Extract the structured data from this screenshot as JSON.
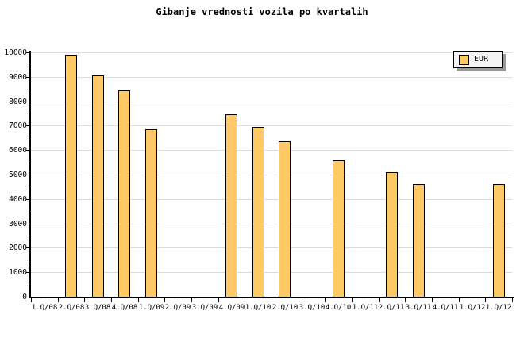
{
  "chart_data": {
    "type": "bar",
    "title": "Gibanje vrednosti vozila po kvartalih",
    "categories": [
      "1.Q/08",
      "2.Q/08",
      "3.Q/08",
      "4.Q/08",
      "1.Q/09",
      "2.Q/09",
      "3.Q/09",
      "4.Q/09",
      "1.Q/10",
      "2.Q/10",
      "3.Q/10",
      "4.Q/10",
      "1.Q/11",
      "2.Q/11",
      "3.Q/11",
      "4.Q/11",
      "1.Q/12",
      "1.Q/12"
    ],
    "series": [
      {
        "name": "EUR",
        "values": [
          null,
          9900,
          9050,
          8450,
          6850,
          null,
          null,
          7480,
          6950,
          6350,
          null,
          5600,
          null,
          5100,
          4600,
          null,
          null,
          4600
        ]
      }
    ],
    "xlabel": "",
    "ylabel": "",
    "ylim": [
      0,
      10000
    ],
    "y_ticks": [
      0,
      1000,
      2000,
      3000,
      4000,
      5000,
      6000,
      7000,
      8000,
      9000,
      10000
    ],
    "y_minor_tick_step": 500,
    "grid": "horizontal",
    "legend_position": "top-right",
    "colors": {
      "bar_fill": "#FFC966",
      "bar_border": "#000000",
      "grid_line": "#DCDCDC",
      "axis": "#000000",
      "legend_background": "#F4F4F4",
      "legend_shadow": "#999999",
      "text": "#000000",
      "background": "#FFFFFF"
    }
  }
}
